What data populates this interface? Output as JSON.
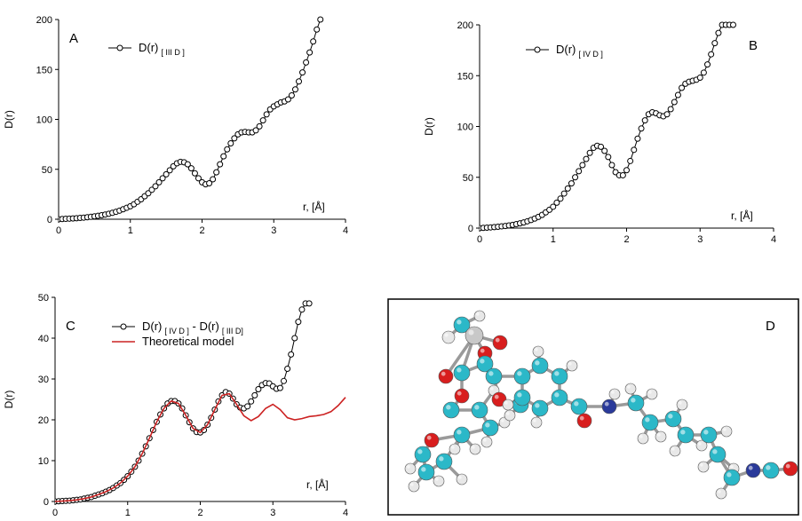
{
  "chart_data": [
    {
      "id": "A",
      "type": "scatter",
      "panel_label": "A",
      "ylabel": "D(r)",
      "xlabel": "r, [Å]",
      "xlim": [
        0,
        4
      ],
      "ylim": [
        0,
        200
      ],
      "xticks": [
        "0",
        "1",
        "2",
        "3",
        "4"
      ],
      "yticks": [
        "0",
        "50",
        "100",
        "150",
        "200"
      ],
      "legend_placement": "top-left",
      "series": [
        {
          "name": "D(r)",
          "name_sub": "[ III D ]",
          "style": "line-circle",
          "color": "#000000",
          "x": [
            0,
            0.05,
            0.1,
            0.15,
            0.2,
            0.25,
            0.3,
            0.35,
            0.4,
            0.45,
            0.5,
            0.55,
            0.6,
            0.65,
            0.7,
            0.75,
            0.8,
            0.85,
            0.9,
            0.95,
            1.0,
            1.05,
            1.1,
            1.15,
            1.2,
            1.25,
            1.3,
            1.35,
            1.4,
            1.45,
            1.5,
            1.55,
            1.6,
            1.65,
            1.7,
            1.75,
            1.8,
            1.85,
            1.9,
            1.95,
            2.0,
            2.05,
            2.1,
            2.15,
            2.2,
            2.25,
            2.3,
            2.35,
            2.4,
            2.45,
            2.5,
            2.55,
            2.6,
            2.65,
            2.7,
            2.75,
            2.8,
            2.85,
            2.9,
            2.95,
            3.0,
            3.05,
            3.1,
            3.15,
            3.2,
            3.25,
            3.3,
            3.35,
            3.4,
            3.45,
            3.5,
            3.55,
            3.6,
            3.65
          ],
          "y": [
            0,
            0.2,
            0.4,
            0.6,
            0.8,
            1.0,
            1.3,
            1.6,
            2.0,
            2.4,
            2.9,
            3.4,
            4.0,
            4.7,
            5.5,
            6.4,
            7.4,
            8.6,
            10,
            11.5,
            13,
            15,
            17.5,
            20,
            23,
            26,
            29.5,
            33,
            37,
            41,
            45,
            49,
            53,
            56,
            57.5,
            57,
            55,
            51,
            46,
            41,
            37,
            35,
            36,
            40,
            47,
            55,
            63,
            70,
            76,
            81,
            85,
            87,
            87.5,
            87,
            87,
            89,
            93,
            99,
            105,
            110,
            113,
            115,
            117,
            118,
            120,
            124,
            130,
            138,
            147,
            157,
            167,
            178,
            190,
            200
          ]
        }
      ]
    },
    {
      "id": "B",
      "type": "scatter",
      "panel_label": "B",
      "ylabel": "D(r)",
      "xlabel": "r, [Å]",
      "xlim": [
        0,
        4
      ],
      "ylim": [
        0,
        200
      ],
      "xticks": [
        "0",
        "1",
        "2",
        "3",
        "4"
      ],
      "yticks": [
        "0",
        "50",
        "100",
        "150",
        "200"
      ],
      "legend_placement": "top-left",
      "series": [
        {
          "name": "D(r)",
          "name_sub": "[ IV D ]",
          "style": "line-circle",
          "color": "#000000",
          "x": [
            0,
            0.05,
            0.1,
            0.15,
            0.2,
            0.25,
            0.3,
            0.35,
            0.4,
            0.45,
            0.5,
            0.55,
            0.6,
            0.65,
            0.7,
            0.75,
            0.8,
            0.85,
            0.9,
            0.95,
            1.0,
            1.05,
            1.1,
            1.15,
            1.2,
            1.25,
            1.3,
            1.35,
            1.4,
            1.45,
            1.5,
            1.55,
            1.6,
            1.65,
            1.7,
            1.75,
            1.8,
            1.85,
            1.9,
            1.95,
            2.0,
            2.05,
            2.1,
            2.15,
            2.2,
            2.25,
            2.3,
            2.35,
            2.4,
            2.45,
            2.5,
            2.55,
            2.6,
            2.65,
            2.7,
            2.75,
            2.8,
            2.85,
            2.9,
            2.95,
            3.0,
            3.05,
            3.1,
            3.15,
            3.2,
            3.25,
            3.3,
            3.35,
            3.4,
            3.45
          ],
          "y": [
            0,
            0.2,
            0.4,
            0.7,
            1.0,
            1.3,
            1.7,
            2.1,
            2.6,
            3.2,
            3.9,
            4.7,
            5.6,
            6.7,
            8.0,
            9.4,
            11,
            13,
            15.5,
            18,
            21,
            25,
            29,
            34,
            39,
            44,
            50,
            56,
            62,
            68,
            74,
            79,
            81,
            80,
            76,
            70,
            62,
            55,
            52,
            52,
            57,
            66,
            77,
            88,
            98,
            106,
            112,
            114,
            113,
            111,
            110,
            112,
            117,
            124,
            131,
            138,
            142,
            144,
            145,
            146,
            148,
            153,
            161,
            171,
            182,
            192,
            200,
            200,
            200,
            200
          ]
        }
      ]
    },
    {
      "id": "C",
      "type": "line",
      "panel_label": "C",
      "ylabel": "D(r)",
      "xlabel": "r, [Å]",
      "xlim": [
        0,
        4
      ],
      "ylim": [
        0,
        50
      ],
      "xticks": [
        "0",
        "1",
        "2",
        "3",
        "4"
      ],
      "yticks": [
        "0",
        "10",
        "20",
        "30",
        "40",
        "50"
      ],
      "legend_placement": "top-left",
      "series": [
        {
          "name": "D(r)",
          "name_sub": "[ IV D ]",
          "name_mid": " - D(r)",
          "name_sub2": "[ III D]",
          "style": "line-circle",
          "color": "#000000",
          "x": [
            0,
            0.05,
            0.1,
            0.15,
            0.2,
            0.25,
            0.3,
            0.35,
            0.4,
            0.45,
            0.5,
            0.55,
            0.6,
            0.65,
            0.7,
            0.75,
            0.8,
            0.85,
            0.9,
            0.95,
            1.0,
            1.05,
            1.1,
            1.15,
            1.2,
            1.25,
            1.3,
            1.35,
            1.4,
            1.45,
            1.5,
            1.55,
            1.6,
            1.65,
            1.7,
            1.75,
            1.8,
            1.85,
            1.9,
            1.95,
            2.0,
            2.05,
            2.1,
            2.15,
            2.2,
            2.25,
            2.3,
            2.35,
            2.4,
            2.45,
            2.5,
            2.55,
            2.6,
            2.65,
            2.7,
            2.75,
            2.8,
            2.85,
            2.9,
            2.95,
            3.0,
            3.05,
            3.1,
            3.15,
            3.2,
            3.25,
            3.3,
            3.35,
            3.4,
            3.45,
            3.5
          ],
          "y": [
            0,
            0.05,
            0.1,
            0.15,
            0.2,
            0.3,
            0.4,
            0.5,
            0.7,
            0.9,
            1.1,
            1.4,
            1.7,
            2.0,
            2.4,
            2.8,
            3.3,
            3.9,
            4.5,
            5.3,
            6.2,
            7.3,
            8.5,
            10,
            11.7,
            13.5,
            15.5,
            17.5,
            19.5,
            21.3,
            22.8,
            24.0,
            24.6,
            24.6,
            24.0,
            22.8,
            21.1,
            19.4,
            17.9,
            17.0,
            16.9,
            17.5,
            18.8,
            20.5,
            22.5,
            24.5,
            26.0,
            26.8,
            26.4,
            25.2,
            23.8,
            23.0,
            22.8,
            23.3,
            24.5,
            26.0,
            27.5,
            28.5,
            29.0,
            28.9,
            28.2,
            27.6,
            27.8,
            29.5,
            32.5,
            36,
            40,
            44,
            47,
            48.5,
            48.5
          ]
        },
        {
          "name": "Theoretical model",
          "style": "line",
          "color": "#cc2222",
          "x": [
            0,
            0.1,
            0.2,
            0.3,
            0.4,
            0.5,
            0.6,
            0.7,
            0.8,
            0.9,
            1.0,
            1.1,
            1.2,
            1.3,
            1.4,
            1.5,
            1.6,
            1.7,
            1.8,
            1.9,
            2.0,
            2.1,
            2.2,
            2.3,
            2.4,
            2.5,
            2.6,
            2.7,
            2.8,
            2.9,
            3.0,
            3.1,
            3.2,
            3.3,
            3.4,
            3.5,
            3.6,
            3.7,
            3.8,
            3.9,
            4.0
          ],
          "y": [
            0,
            0.1,
            0.2,
            0.4,
            0.7,
            1.1,
            1.7,
            2.4,
            3.3,
            4.5,
            6.2,
            8.5,
            11.7,
            15.5,
            19.5,
            22.8,
            24.6,
            24.0,
            21.1,
            17.9,
            16.9,
            18.8,
            22.5,
            26.0,
            26.4,
            23.8,
            21.0,
            19.8,
            20.8,
            22.8,
            23.8,
            22.5,
            20.5,
            20.0,
            20.3,
            20.8,
            21.0,
            21.3,
            22.0,
            23.5,
            25.5
          ]
        }
      ]
    }
  ],
  "panel_d": {
    "label": "D"
  }
}
